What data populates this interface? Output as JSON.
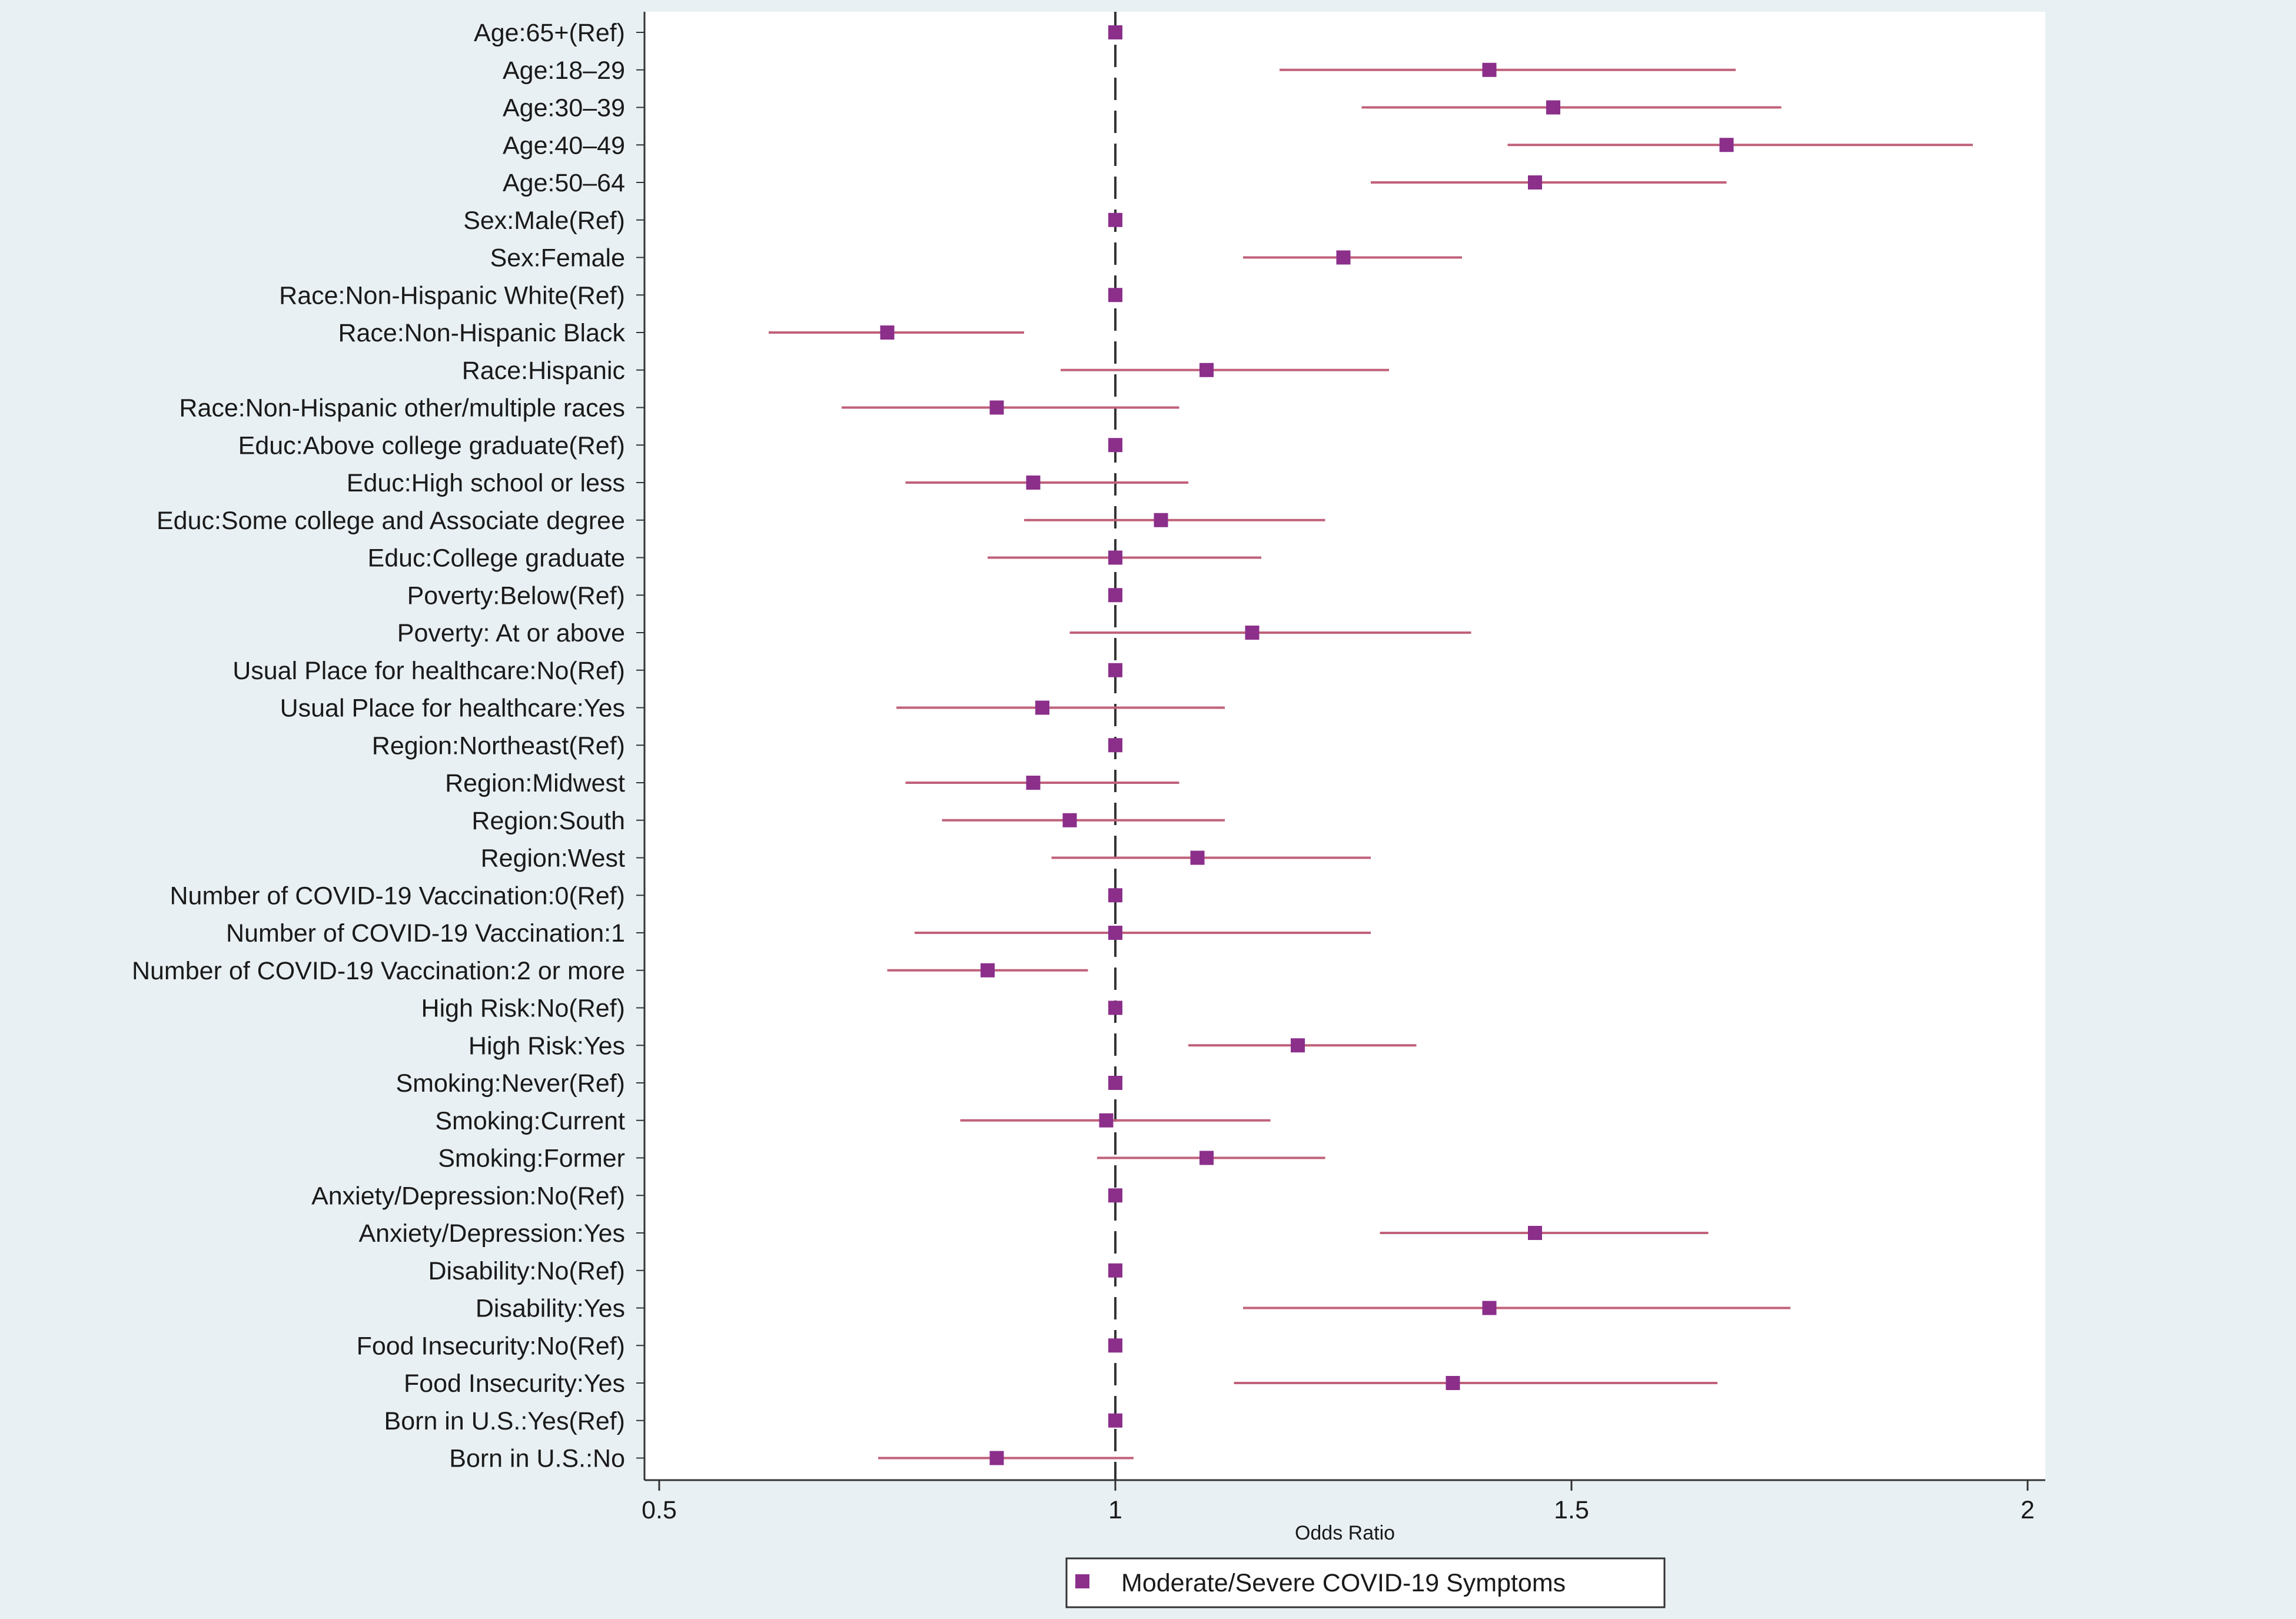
{
  "chart_data": {
    "type": "forest",
    "xlabel": "Odds Ratio",
    "ylabel": "",
    "xlim": [
      0.5,
      2
    ],
    "xticks": [
      0.5,
      1,
      1.5,
      2
    ],
    "xtick_labels": [
      "0.5",
      "1",
      "1.5",
      "2"
    ],
    "reference_line": 1,
    "grid": false,
    "legend": {
      "placement": "bottom-center",
      "entries": [
        "Moderate/Severe COVID-19 Symptoms"
      ]
    },
    "series": [
      {
        "name": "Moderate/Severe COVID-19 Symptoms",
        "color": "#8b2f8b",
        "ci_color": "#c0617a"
      }
    ],
    "rows": [
      {
        "label": "Age:65+(Ref)",
        "or": 1.0,
        "lo": 1.0,
        "hi": 1.0
      },
      {
        "label": "Age:18–29",
        "or": 1.41,
        "lo": 1.18,
        "hi": 1.68
      },
      {
        "label": "Age:30–39",
        "or": 1.48,
        "lo": 1.27,
        "hi": 1.73
      },
      {
        "label": "Age:40–49",
        "or": 1.67,
        "lo": 1.43,
        "hi": 1.94
      },
      {
        "label": "Age:50–64",
        "or": 1.46,
        "lo": 1.28,
        "hi": 1.67
      },
      {
        "label": "Sex:Male(Ref)",
        "or": 1.0,
        "lo": 1.0,
        "hi": 1.0
      },
      {
        "label": "Sex:Female",
        "or": 1.25,
        "lo": 1.14,
        "hi": 1.38
      },
      {
        "label": "Race:Non-Hispanic White(Ref)",
        "or": 1.0,
        "lo": 1.0,
        "hi": 1.0
      },
      {
        "label": "Race:Non-Hispanic Black",
        "or": 0.75,
        "lo": 0.62,
        "hi": 0.9
      },
      {
        "label": "Race:Hispanic",
        "or": 1.1,
        "lo": 0.94,
        "hi": 1.3
      },
      {
        "label": "Race:Non-Hispanic other/multiple races",
        "or": 0.87,
        "lo": 0.7,
        "hi": 1.07
      },
      {
        "label": "Educ:Above college graduate(Ref)",
        "or": 1.0,
        "lo": 1.0,
        "hi": 1.0
      },
      {
        "label": "Educ:High school or less",
        "or": 0.91,
        "lo": 0.77,
        "hi": 1.08
      },
      {
        "label": "Educ:Some college and Associate degree",
        "or": 1.05,
        "lo": 0.9,
        "hi": 1.23
      },
      {
        "label": "Educ:College graduate",
        "or": 1.0,
        "lo": 0.86,
        "hi": 1.16
      },
      {
        "label": "Poverty:Below(Ref)",
        "or": 1.0,
        "lo": 1.0,
        "hi": 1.0
      },
      {
        "label": "Poverty: At or above",
        "or": 1.15,
        "lo": 0.95,
        "hi": 1.39
      },
      {
        "label": "Usual Place for healthcare:No(Ref)",
        "or": 1.0,
        "lo": 1.0,
        "hi": 1.0
      },
      {
        "label": "Usual Place for healthcare:Yes",
        "or": 0.92,
        "lo": 0.76,
        "hi": 1.12
      },
      {
        "label": "Region:Northeast(Ref)",
        "or": 1.0,
        "lo": 1.0,
        "hi": 1.0
      },
      {
        "label": "Region:Midwest",
        "or": 0.91,
        "lo": 0.77,
        "hi": 1.07
      },
      {
        "label": "Region:South",
        "or": 0.95,
        "lo": 0.81,
        "hi": 1.12
      },
      {
        "label": "Region:West",
        "or": 1.09,
        "lo": 0.93,
        "hi": 1.28
      },
      {
        "label": "Number of COVID-19 Vaccination:0(Ref)",
        "or": 1.0,
        "lo": 1.0,
        "hi": 1.0
      },
      {
        "label": "Number of COVID-19 Vaccination:1",
        "or": 1.0,
        "lo": 0.78,
        "hi": 1.28
      },
      {
        "label": "Number of COVID-19 Vaccination:2 or more",
        "or": 0.86,
        "lo": 0.75,
        "hi": 0.97
      },
      {
        "label": "High Risk:No(Ref)",
        "or": 1.0,
        "lo": 1.0,
        "hi": 1.0
      },
      {
        "label": "High Risk:Yes",
        "or": 1.2,
        "lo": 1.08,
        "hi": 1.33
      },
      {
        "label": "Smoking:Never(Ref)",
        "or": 1.0,
        "lo": 1.0,
        "hi": 1.0
      },
      {
        "label": "Smoking:Current",
        "or": 0.99,
        "lo": 0.83,
        "hi": 1.17
      },
      {
        "label": "Smoking:Former",
        "or": 1.1,
        "lo": 0.98,
        "hi": 1.23
      },
      {
        "label": "Anxiety/Depression:No(Ref)",
        "or": 1.0,
        "lo": 1.0,
        "hi": 1.0
      },
      {
        "label": "Anxiety/Depression:Yes",
        "or": 1.46,
        "lo": 1.29,
        "hi": 1.65
      },
      {
        "label": "Disability:No(Ref)",
        "or": 1.0,
        "lo": 1.0,
        "hi": 1.0
      },
      {
        "label": "Disability:Yes",
        "or": 1.41,
        "lo": 1.14,
        "hi": 1.74
      },
      {
        "label": "Food Insecurity:No(Ref)",
        "or": 1.0,
        "lo": 1.0,
        "hi": 1.0
      },
      {
        "label": "Food Insecurity:Yes",
        "or": 1.37,
        "lo": 1.13,
        "hi": 1.66
      },
      {
        "label": "Born in U.S.:Yes(Ref)",
        "or": 1.0,
        "lo": 1.0,
        "hi": 1.0
      },
      {
        "label": "Born in U.S.:No",
        "or": 0.87,
        "lo": 0.74,
        "hi": 1.02
      }
    ]
  }
}
